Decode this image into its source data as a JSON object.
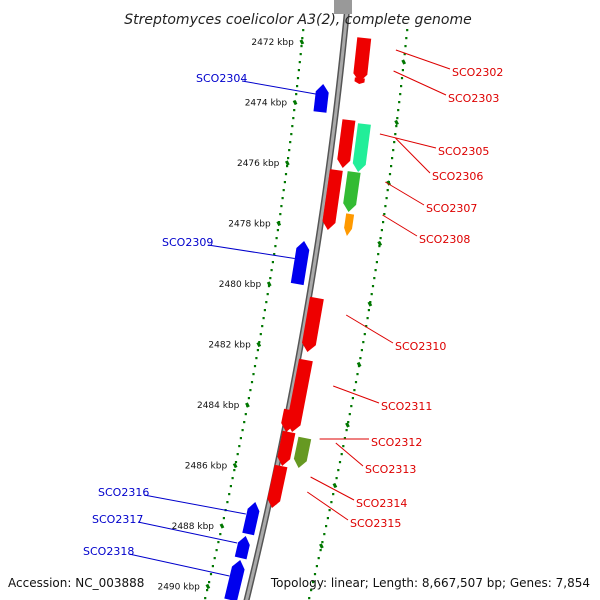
{
  "title": "Streptomyces coelicolor A3(2), complete genome",
  "footer": {
    "accession": "Accession: NC_003888",
    "summary": "Topology: linear; Length: 8,667,507 bp; Genes: 7,854"
  },
  "colors": {
    "reverse_strand": "#0000ee",
    "forward_strand": "#ee0000",
    "label_reverse": "#0000cc",
    "label_forward": "#dd0000",
    "ruler": "#007700",
    "backbone": "#888888"
  },
  "ticks": [
    "2472 kbp",
    "2474 kbp",
    "2476 kbp",
    "2478 kbp",
    "2480 kbp",
    "2482 kbp",
    "2484 kbp",
    "2486 kbp",
    "2488 kbp",
    "2490 kbp"
  ],
  "genes": [
    {
      "id": "SCO2302",
      "strand": "+",
      "color": "#ee0000"
    },
    {
      "id": "SCO2303",
      "strand": "+",
      "color": "#ee0000"
    },
    {
      "id": "SCO2304",
      "strand": "-",
      "color": "#0000ee"
    },
    {
      "id": "SCO2305",
      "strand": "+",
      "color": "#ee0000"
    },
    {
      "id": "SCO2306",
      "strand": "+",
      "color": "#22ee99"
    },
    {
      "id": "SCO2307",
      "strand": "+",
      "color": "#33bb33"
    },
    {
      "id": "SCO2308",
      "strand": "+",
      "color": "#ff9900"
    },
    {
      "id": "SCO2309",
      "strand": "-",
      "color": "#0000ee"
    },
    {
      "id": "SCO2310",
      "strand": "+",
      "color": "#ee0000"
    },
    {
      "id": "SCO2311",
      "strand": "+",
      "color": "#ee0000"
    },
    {
      "id": "SCO2312",
      "strand": "+",
      "color": "#ee0000"
    },
    {
      "id": "SCO2313",
      "strand": "+",
      "color": "#669922"
    },
    {
      "id": "SCO2314",
      "strand": "+",
      "color": "#ee0000"
    },
    {
      "id": "SCO2315",
      "strand": "+",
      "color": "#ee0000"
    },
    {
      "id": "SCO2316",
      "strand": "-",
      "color": "#0000ee"
    },
    {
      "id": "SCO2317",
      "strand": "-",
      "color": "#0000ee"
    },
    {
      "id": "SCO2318",
      "strand": "-",
      "color": "#0000ee"
    }
  ]
}
